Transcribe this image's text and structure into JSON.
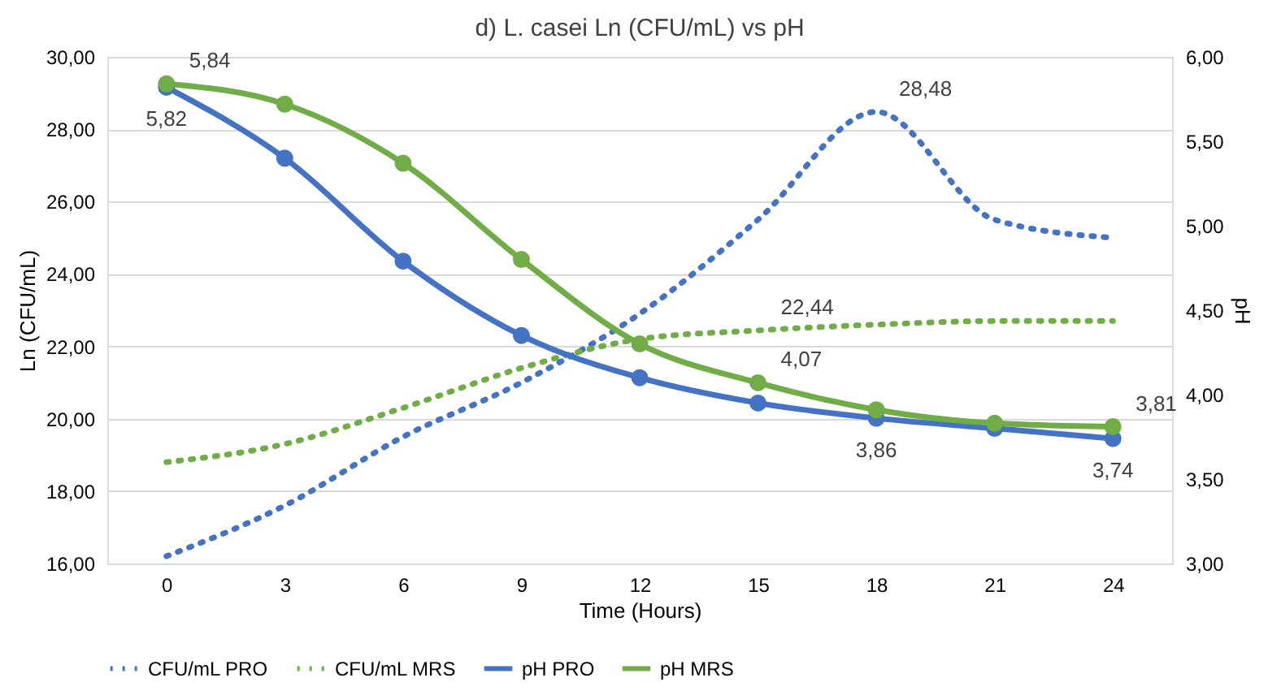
{
  "chart_data": {
    "type": "line",
    "title": "d) L. casei Ln (CFU/mL) vs pH",
    "xlabel": "Time (Hours)",
    "ylabel": "Ln (CFU/mL)",
    "y2label": "pH",
    "categories": [
      "0",
      "3",
      "6",
      "9",
      "12",
      "15",
      "18",
      "21",
      "24"
    ],
    "series": [
      {
        "name": "CFU/mL PRO",
        "color": "#4472c4",
        "line_style": "dotted",
        "marker": "none",
        "values": [
          16.2,
          17.6,
          19.5,
          21.0,
          22.9,
          25.5,
          28.48,
          25.5,
          25.0
        ],
        "value_labels": [
          null,
          null,
          null,
          null,
          null,
          null,
          "28,48",
          null,
          null
        ]
      },
      {
        "name": "CFU/mL MRS",
        "color": "#70ad47",
        "line_style": "dotted",
        "marker": "none",
        "values": [
          18.8,
          19.3,
          20.3,
          21.4,
          22.2,
          22.44,
          22.6,
          22.7,
          22.7
        ],
        "value_labels": [
          null,
          null,
          null,
          null,
          null,
          "22,44",
          null,
          null,
          null
        ]
      },
      {
        "name": "pH PRO",
        "color": "#4472c4",
        "line_style": "solid",
        "marker": "circle",
        "axis": "y2",
        "values": [
          5.82,
          5.4,
          4.79,
          4.35,
          4.1,
          3.95,
          3.86,
          3.8,
          3.74
        ],
        "value_labels": [
          "5,82",
          null,
          null,
          null,
          null,
          null,
          "3,86",
          null,
          "3,74"
        ]
      },
      {
        "name": "pH MRS",
        "color": "#70ad47",
        "line_style": "solid",
        "marker": "circle",
        "axis": "y2",
        "values": [
          5.84,
          5.72,
          5.37,
          4.8,
          4.3,
          4.07,
          3.91,
          3.83,
          3.81
        ],
        "value_labels": [
          "5,84",
          null,
          null,
          null,
          null,
          "4,07",
          null,
          null,
          "3,81"
        ]
      }
    ],
    "ylim": [
      16,
      30
    ],
    "yticks": [
      {
        "value": 16,
        "label": "16,00"
      },
      {
        "value": 18,
        "label": "18,00"
      },
      {
        "value": 20,
        "label": "20,00"
      },
      {
        "value": 22,
        "label": "22,00"
      },
      {
        "value": 24,
        "label": "24,00"
      },
      {
        "value": 26,
        "label": "26,00"
      },
      {
        "value": 28,
        "label": "28,00"
      },
      {
        "value": 30,
        "label": "30,00"
      }
    ],
    "y2lim": [
      3,
      6
    ],
    "y2ticks": [
      {
        "value": 3,
        "label": "3,00"
      },
      {
        "value": 3.5,
        "label": "3,50"
      },
      {
        "value": 4,
        "label": "4,00"
      },
      {
        "value": 4.5,
        "label": "4,50"
      },
      {
        "value": 5,
        "label": "5,00"
      },
      {
        "value": 5.5,
        "label": "5,50"
      },
      {
        "value": 6,
        "label": "6,00"
      }
    ],
    "grid": "y",
    "legend": "bottom"
  }
}
